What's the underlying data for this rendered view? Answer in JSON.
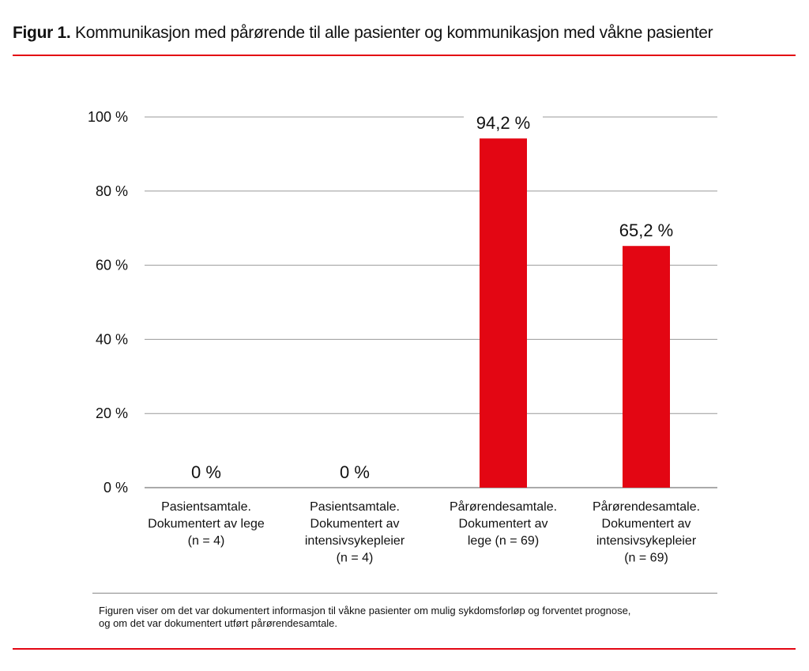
{
  "figure": {
    "label": "Figur 1.",
    "title": "Kommunikasjon med pårørende til alle pasienter og kommunikasjon med våkne pasienter",
    "note_line1": "Figuren viser om det var dokumentert informasjon til våkne pasienter om mulig sykdomsforløp og forventet prognose,",
    "note_line2": "og om det var dokumentert utført pårørendesamtale.",
    "accent_color": "#e30613"
  },
  "chart_data": {
    "type": "bar",
    "categories": [
      [
        "Pasientsamtale.",
        "Dokumentert av lege",
        "(n = 4)"
      ],
      [
        "Pasientsamtale.",
        "Dokumentert av",
        "intensivsykepleier",
        "(n = 4)"
      ],
      [
        "Pårørendesamtale.",
        "Dokumentert av",
        "lege (n = 69)"
      ],
      [
        "Pårørendesamtale.",
        "Dokumentert av",
        "intensivsykepleier",
        "(n = 69)"
      ]
    ],
    "values": [
      0,
      0,
      94.2,
      65.2
    ],
    "data_labels": [
      "0 %",
      "0 %",
      "94,2 %",
      "65,2 %"
    ],
    "yticks": [
      0,
      20,
      40,
      60,
      80,
      100
    ],
    "ytick_labels": [
      "0 %",
      "20 %",
      "40 %",
      "60 %",
      "80 %",
      "100 %"
    ],
    "ylim": [
      0,
      100
    ],
    "grid": true,
    "bar_color": "#e30613"
  }
}
